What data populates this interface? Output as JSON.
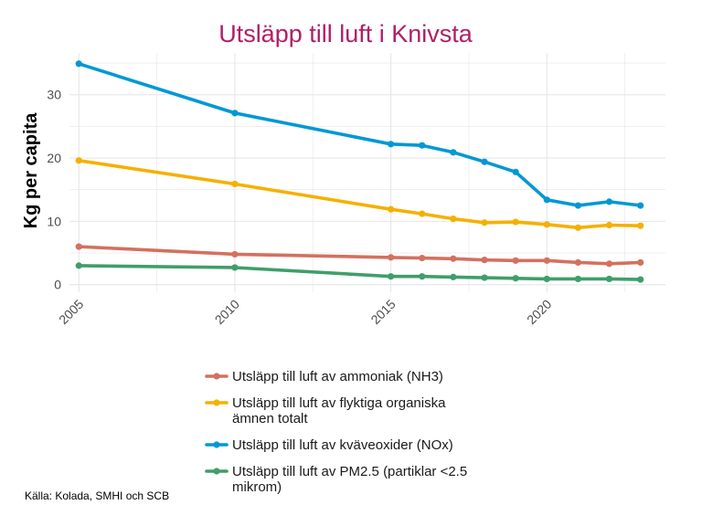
{
  "chart_data": {
    "type": "line",
    "title": "Utsläpp till luft i Knivsta",
    "ylabel": "Kg per capita",
    "xlabel": "",
    "source": "Källa: Kolada, SMHI och SCB",
    "xlim": [
      2004.7,
      2023.8
    ],
    "ylim": [
      -1.2,
      36.6
    ],
    "x_ticks": [
      2005,
      2010,
      2015,
      2020
    ],
    "y_ticks": [
      0,
      10,
      20,
      30
    ],
    "grid": true,
    "legend_position": "bottom",
    "x": [
      2005,
      2010,
      2015,
      2016,
      2017,
      2018,
      2019,
      2020,
      2021,
      2022,
      2023
    ],
    "series": [
      {
        "name": "Utsläpp till luft av ammoniak (NH3)",
        "color": "#d4705f",
        "values": [
          6.0,
          4.8,
          4.3,
          4.2,
          4.1,
          3.9,
          3.8,
          3.8,
          3.5,
          3.3,
          3.5
        ]
      },
      {
        "name": "Utsläpp till luft av flyktiga organiska ämnen totalt",
        "color": "#f5b000",
        "values": [
          19.6,
          15.9,
          11.9,
          11.2,
          10.4,
          9.8,
          9.9,
          9.5,
          9.0,
          9.4,
          9.3
        ]
      },
      {
        "name": "Utsläpp till luft av kväveoxider (NOx)",
        "color": "#0098d4",
        "values": [
          34.9,
          27.1,
          22.2,
          22.0,
          20.9,
          19.4,
          17.8,
          13.4,
          12.5,
          13.1,
          12.5
        ]
      },
      {
        "name": "Utsläpp till luft av PM2.5 (partiklar <2.5 mikrom)",
        "color": "#3f9e6a",
        "values": [
          3.0,
          2.7,
          1.3,
          1.3,
          1.2,
          1.1,
          1.0,
          0.9,
          0.9,
          0.9,
          0.8
        ]
      }
    ]
  },
  "style": {
    "title_color": "#b01f67",
    "grid_color": "#e6e6e6"
  }
}
